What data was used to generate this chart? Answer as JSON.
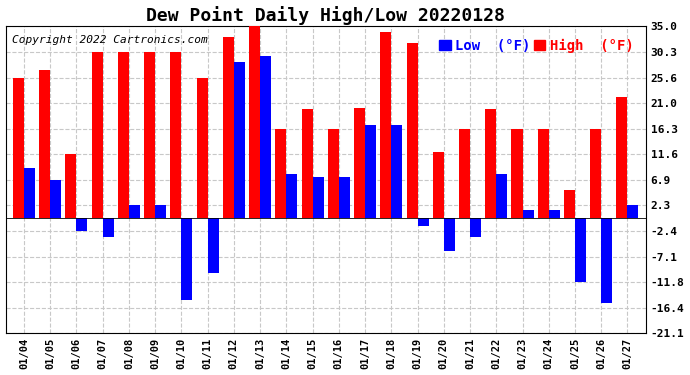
{
  "title": "Dew Point Daily High/Low 20220128",
  "copyright": "Copyright 2022 Cartronics.com",
  "dates": [
    "01/04",
    "01/05",
    "01/06",
    "01/07",
    "01/08",
    "01/09",
    "01/10",
    "01/11",
    "01/12",
    "01/13",
    "01/14",
    "01/15",
    "01/16",
    "01/17",
    "01/18",
    "01/19",
    "01/20",
    "01/21",
    "01/22",
    "01/23",
    "01/24",
    "01/25",
    "01/26",
    "01/27"
  ],
  "high_values": [
    25.6,
    27.0,
    11.6,
    30.3,
    30.3,
    30.3,
    30.3,
    25.6,
    33.0,
    36.0,
    16.3,
    19.8,
    16.3,
    20.0,
    34.0,
    32.0,
    12.0,
    16.3,
    19.8,
    16.3,
    16.3,
    5.0,
    16.3,
    22.0
  ],
  "low_values": [
    9.0,
    6.9,
    -2.4,
    -3.5,
    2.3,
    2.3,
    -15.0,
    -10.0,
    28.5,
    29.5,
    8.0,
    7.5,
    7.5,
    17.0,
    17.0,
    -1.5,
    -6.0,
    -3.5,
    8.0,
    1.5,
    1.5,
    -11.8,
    -15.5,
    2.3
  ],
  "ylim": [
    -21.1,
    35.0
  ],
  "yticks": [
    35.0,
    30.3,
    25.6,
    21.0,
    16.3,
    11.6,
    6.9,
    2.3,
    -2.4,
    -7.1,
    -11.8,
    -16.4,
    -21.1
  ],
  "high_color": "#ff0000",
  "low_color": "#0000ff",
  "bg_color": "#ffffff",
  "grid_color": "#c8c8c8",
  "plot_bg_color": "#ffffff",
  "title_fontsize": 13,
  "copyright_fontsize": 8,
  "legend_fontsize": 10,
  "bar_width": 0.42
}
